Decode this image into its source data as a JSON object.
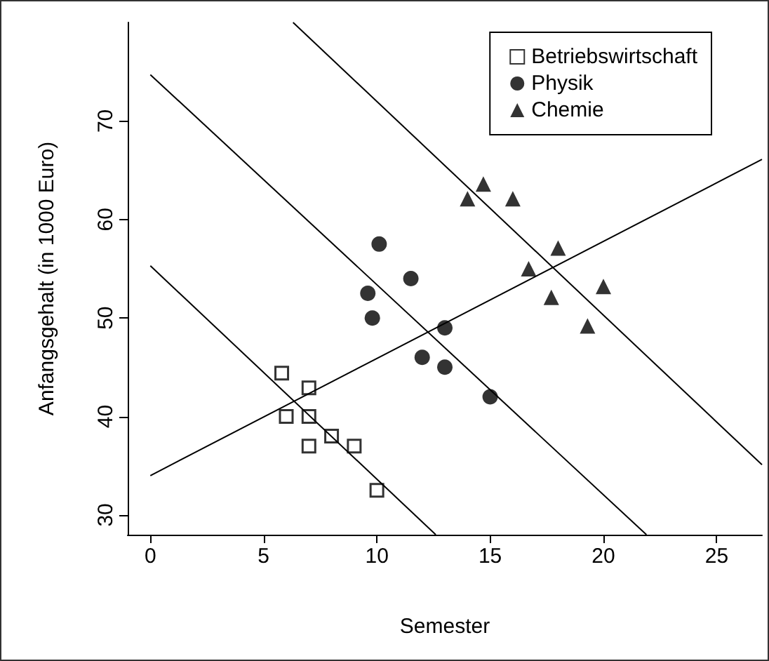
{
  "chart_data": {
    "type": "scatter",
    "xlabel": "Semester",
    "ylabel": "Anfangsgehalt (in 1000 Euro)",
    "xlim": [
      -1,
      27
    ],
    "ylim": [
      28,
      80
    ],
    "xticks": [
      0,
      5,
      10,
      15,
      20,
      25
    ],
    "yticks": [
      30,
      40,
      50,
      60,
      70
    ],
    "grid": false,
    "legend": "top right",
    "series": [
      {
        "name": "Betriebswirtschaft",
        "color": "#000000",
        "marker": "square",
        "x": [
          5.8,
          7,
          6,
          7,
          7,
          8,
          9,
          10
        ],
        "values": [
          44.4,
          42.9,
          40,
          40,
          37,
          38,
          37,
          32.5
        ]
      },
      {
        "name": "Physik",
        "color": "#000000",
        "marker": "circle",
        "x": [
          10.1,
          11.5,
          9.6,
          9.8,
          13,
          12,
          13,
          15
        ],
        "values": [
          57.5,
          54,
          52.5,
          50,
          49,
          46,
          45,
          42
        ]
      },
      {
        "name": "Chemie",
        "color": "#000000",
        "marker": "triangle",
        "x": [
          14,
          14.7,
          16,
          18,
          16.7,
          17.7,
          20,
          19.3
        ],
        "values": [
          62.1,
          63.6,
          62.1,
          57.1,
          55,
          52.1,
          53.2,
          49.2
        ]
      },
      {
        "type": "line",
        "color": "#000000",
        "x": [
          0,
          27
        ],
        "values": [
          34,
          66.1
        ]
      },
      {
        "type": "line",
        "color": "#000000",
        "x": [
          0,
          12.6
        ],
        "values": [
          55.3,
          28
        ]
      },
      {
        "type": "line",
        "color": "#000000",
        "x": [
          0,
          21.9
        ],
        "values": [
          74.7,
          28
        ]
      },
      {
        "type": "line",
        "color": "#000000",
        "x": [
          6.3,
          27
        ],
        "values": [
          80,
          35.1
        ]
      }
    ]
  }
}
